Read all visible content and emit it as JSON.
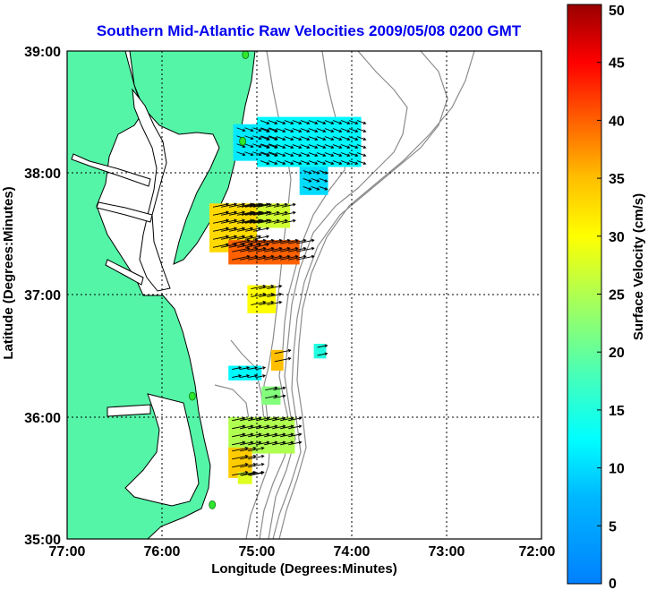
{
  "title": "Southern Mid-Atlantic Raw Velocities 2009/05/08 0200 GMT",
  "x_axis": {
    "label": "Longitude (Degrees:Minutes)",
    "ticks": [
      {
        "value": -77,
        "label": "77:00"
      },
      {
        "value": -76,
        "label": "76:00"
      },
      {
        "value": -75,
        "label": "75:00"
      },
      {
        "value": -74,
        "label": "74:00"
      },
      {
        "value": -73,
        "label": "73:00"
      },
      {
        "value": -72,
        "label": "72:00"
      }
    ],
    "range": [
      -77,
      -72
    ]
  },
  "y_axis": {
    "label": "Latitude (Degrees:Minutes)",
    "ticks": [
      {
        "value": 35,
        "label": "35:00"
      },
      {
        "value": 36,
        "label": "36:00"
      },
      {
        "value": 37,
        "label": "37:00"
      },
      {
        "value": 38,
        "label": "38:00"
      },
      {
        "value": 39,
        "label": "39:00"
      }
    ],
    "range": [
      35,
      39
    ]
  },
  "colorbar": {
    "label": "Surface Velocity (cm/s)",
    "ticks": [
      "0",
      "5",
      "10",
      "15",
      "20",
      "25",
      "30",
      "35",
      "40",
      "45",
      "50"
    ],
    "range": [
      0,
      50
    ],
    "colormap": "jet"
  },
  "colors": {
    "land": "#55f5a8",
    "ocean": "#ffffff",
    "coast": "#000000",
    "bathymetry": "#8c8c8c",
    "title": "#0000ee",
    "station": "#2ee62e"
  },
  "stations": [
    {
      "lon": -75.12,
      "lat": 38.97
    },
    {
      "lon": -75.15,
      "lat": 38.26
    },
    {
      "lon": -75.68,
      "lat": 36.17
    },
    {
      "lon": -75.47,
      "lat": 35.28
    }
  ],
  "patches": [
    {
      "lon1": -75.0,
      "lon2": -73.9,
      "lat1": 38.05,
      "lat2": 38.46,
      "speed": 12
    },
    {
      "lon1": -74.55,
      "lon2": -74.25,
      "lat1": 37.82,
      "lat2": 38.05,
      "speed": 10
    },
    {
      "lon1": -75.25,
      "lon2": -74.85,
      "lat1": 38.1,
      "lat2": 38.4,
      "speed": 11
    },
    {
      "lon1": -75.2,
      "lon2": -74.65,
      "lat1": 37.55,
      "lat2": 37.75,
      "speed": 27
    },
    {
      "lon1": -75.5,
      "lon2": -75.0,
      "lat1": 37.35,
      "lat2": 37.75,
      "speed": 33
    },
    {
      "lon1": -75.3,
      "lon2": -74.55,
      "lat1": 37.25,
      "lat2": 37.45,
      "speed": 40
    },
    {
      "lon1": -75.1,
      "lon2": -74.8,
      "lat1": 36.85,
      "lat2": 37.08,
      "speed": 30
    },
    {
      "lon1": -74.85,
      "lon2": -74.72,
      "lat1": 36.38,
      "lat2": 36.55,
      "speed": 35
    },
    {
      "lon1": -74.4,
      "lon2": -74.27,
      "lat1": 36.48,
      "lat2": 36.6,
      "speed": 15
    },
    {
      "lon1": -75.3,
      "lon2": -74.95,
      "lat1": 36.3,
      "lat2": 36.42,
      "speed": 12
    },
    {
      "lon1": -74.95,
      "lon2": -74.75,
      "lat1": 36.1,
      "lat2": 36.25,
      "speed": 22
    },
    {
      "lon1": -75.3,
      "lon2": -74.6,
      "lat1": 35.7,
      "lat2": 36.0,
      "speed": 25
    },
    {
      "lon1": -75.3,
      "lon2": -75.05,
      "lat1": 35.5,
      "lat2": 35.75,
      "speed": 34
    },
    {
      "lon1": -75.2,
      "lon2": -75.05,
      "lat1": 35.45,
      "lat2": 35.55,
      "speed": 28
    }
  ]
}
